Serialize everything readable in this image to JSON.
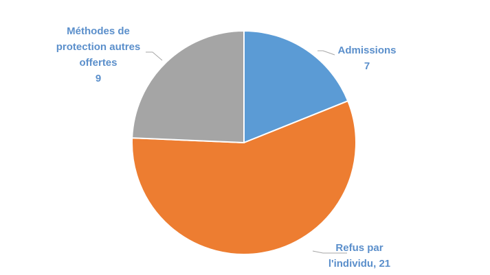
{
  "chart_data": {
    "type": "pie",
    "categories": [
      "Admissions",
      "Refus par l'individu",
      "Méthodes de protection autres offertes"
    ],
    "values": [
      7,
      21,
      9
    ],
    "colors": [
      "#5b9bd5",
      "#ed7d31",
      "#a5a5a5"
    ],
    "label_color": "#5b8fcb",
    "label_separators": [
      null,
      ", ",
      null
    ]
  }
}
